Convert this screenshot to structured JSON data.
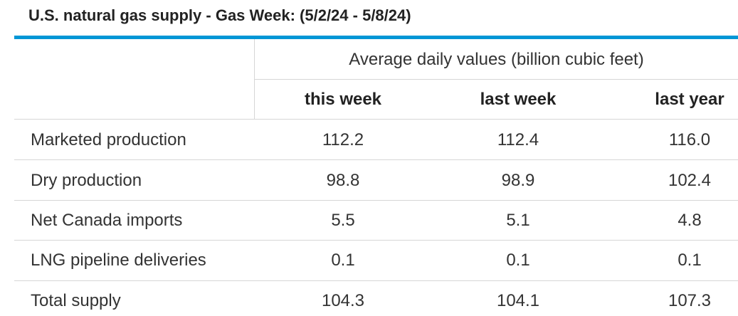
{
  "title": "U.S. natural gas supply - Gas Week: (5/2/24 - 5/8/24)",
  "accent_color": "#0096d6",
  "table": {
    "group_header": "Average daily values (billion cubic feet)",
    "columns": [
      "this week",
      "last week",
      "last year"
    ],
    "rows": [
      {
        "label": "Marketed production",
        "values": [
          "112.2",
          "112.4",
          "116.0"
        ]
      },
      {
        "label": "Dry production",
        "values": [
          "98.8",
          "98.9",
          "102.4"
        ]
      },
      {
        "label": "Net Canada imports",
        "values": [
          "5.5",
          "5.1",
          "4.8"
        ]
      },
      {
        "label": "LNG pipeline deliveries",
        "values": [
          "0.1",
          "0.1",
          "0.1"
        ]
      },
      {
        "label": "Total supply",
        "values": [
          "104.3",
          "104.1",
          "107.3"
        ]
      }
    ]
  },
  "chart_data": {
    "type": "table",
    "title": "U.S. natural gas supply - Gas Week: (5/2/24 - 5/8/24)",
    "unit_header": "Average daily values (billion cubic feet)",
    "categories": [
      "Marketed production",
      "Dry production",
      "Net Canada imports",
      "LNG pipeline deliveries",
      "Total supply"
    ],
    "series": [
      {
        "name": "this week",
        "values": [
          112.2,
          98.8,
          5.5,
          0.1,
          104.3
        ]
      },
      {
        "name": "last week",
        "values": [
          112.4,
          98.9,
          5.1,
          0.1,
          104.1
        ]
      },
      {
        "name": "last year",
        "values": [
          116.0,
          102.4,
          4.8,
          0.1,
          107.3
        ]
      }
    ]
  }
}
